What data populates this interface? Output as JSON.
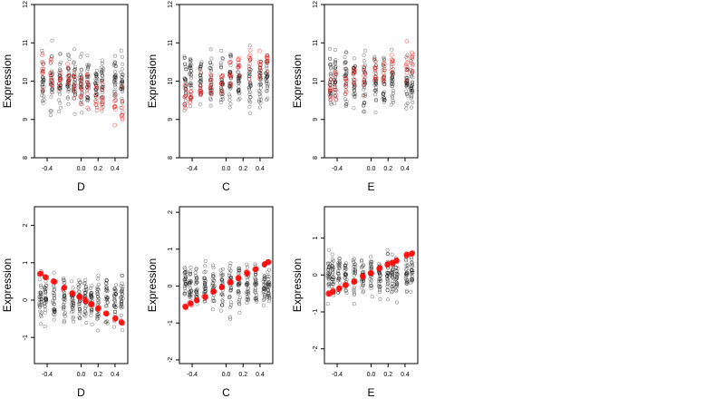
{
  "chart_data": [
    {
      "type": "scatter",
      "xlabel": "D",
      "ylabel": "Expression",
      "xlim": [
        -0.55,
        0.55
      ],
      "ylim": [
        8,
        12
      ],
      "xticks": [
        "-0.4",
        "0.0",
        "0.2",
        "0.4"
      ],
      "xtick_values": [
        -0.4,
        0.0,
        0.2,
        0.4
      ],
      "yticks": [
        "8",
        "9",
        "10",
        "11",
        "12"
      ],
      "ytick_values": [
        8,
        9,
        10,
        11,
        12
      ],
      "x_groups": [
        -0.45,
        -0.35,
        -0.25,
        -0.15,
        -0.08,
        0.0,
        0.08,
        0.18,
        0.25,
        0.4,
        0.48
      ],
      "observed_center": 10.0,
      "observed_spread": 0.85,
      "observed_per_group": 30,
      "fitted": {
        "style": "open",
        "start": 10.3,
        "end": 9.3,
        "spread": 0.55,
        "per_group": 8
      }
    },
    {
      "type": "scatter",
      "xlabel": "C",
      "ylabel": "Expression",
      "xlim": [
        -0.55,
        0.55
      ],
      "ylim": [
        8,
        12
      ],
      "xticks": [
        "-0.4",
        "0.0",
        "0.2",
        "0.4"
      ],
      "xtick_values": [
        -0.4,
        0.0,
        0.2,
        0.4
      ],
      "yticks": [
        "8",
        "9",
        "10",
        "11",
        "12"
      ],
      "ytick_values": [
        8,
        9,
        10,
        11,
        12
      ],
      "x_groups": [
        -0.48,
        -0.42,
        -0.3,
        -0.18,
        -0.05,
        0.05,
        0.15,
        0.28,
        0.4,
        0.48
      ],
      "observed_center": 10.0,
      "observed_spread": 0.85,
      "observed_per_group": 30,
      "fitted": {
        "style": "open",
        "start": 9.6,
        "end": 10.6,
        "spread": 0.45,
        "per_group": 8
      }
    },
    {
      "type": "scatter",
      "xlabel": "E",
      "ylabel": "Expression",
      "xlim": [
        -0.55,
        0.55
      ],
      "ylim": [
        8,
        12
      ],
      "xticks": [
        "-0.4",
        "0.0",
        "0.2",
        "0.4"
      ],
      "xtick_values": [
        -0.4,
        0.0,
        0.2,
        0.4
      ],
      "yticks": [
        "8",
        "9",
        "10",
        "11",
        "12"
      ],
      "ytick_values": [
        8,
        9,
        10,
        11,
        12
      ],
      "x_groups": [
        -0.48,
        -0.42,
        -0.3,
        -0.2,
        -0.08,
        0.05,
        0.15,
        0.25,
        0.42,
        0.48
      ],
      "observed_center": 10.0,
      "observed_spread": 0.85,
      "observed_per_group": 30,
      "fitted": {
        "style": "open",
        "start": 9.9,
        "end": 10.5,
        "spread": 0.5,
        "per_group": 8
      }
    },
    {
      "type": "scatter",
      "xlabel": "D",
      "ylabel": "Expression",
      "xlim": [
        -0.55,
        0.55
      ],
      "ylim": [
        -1.7,
        2.5
      ],
      "xticks": [
        "-0.4",
        "0.0",
        "0.2",
        "0.4"
      ],
      "xtick_values": [
        -0.4,
        0.0,
        0.2,
        0.4
      ],
      "yticks": [
        "-1",
        "0",
        "1",
        "2"
      ],
      "ytick_values": [
        -1,
        0,
        1,
        2
      ],
      "x_groups": [
        -0.48,
        -0.42,
        -0.32,
        -0.2,
        -0.1,
        -0.02,
        0.05,
        0.12,
        0.2,
        0.3,
        0.4,
        0.48
      ],
      "observed_center": 0.0,
      "observed_spread": 0.7,
      "observed_per_group": 28,
      "fitted": {
        "style": "filled",
        "start": 0.7,
        "end": -0.6,
        "spread": 0.04,
        "per_group": 5
      }
    },
    {
      "type": "scatter",
      "xlabel": "C",
      "ylabel": "Expression",
      "xlim": [
        -0.55,
        0.55
      ],
      "ylim": [
        -2.1,
        2.15
      ],
      "xticks": [
        "-0.4",
        "0.0",
        "0.2",
        "0.4"
      ],
      "xtick_values": [
        -0.4,
        0.0,
        0.2,
        0.4
      ],
      "yticks": [
        "-2",
        "-1",
        "0",
        "1",
        "2"
      ],
      "ytick_values": [
        -2,
        -1,
        0,
        1,
        2
      ],
      "x_groups": [
        -0.48,
        -0.42,
        -0.35,
        -0.25,
        -0.15,
        -0.05,
        0.05,
        0.15,
        0.25,
        0.35,
        0.45,
        0.5
      ],
      "observed_center": 0.0,
      "observed_spread": 0.7,
      "observed_per_group": 28,
      "fitted": {
        "style": "filled",
        "start": -0.55,
        "end": 0.65,
        "spread": 0.04,
        "per_group": 5
      }
    },
    {
      "type": "scatter",
      "xlabel": "E",
      "ylabel": "Expression",
      "xlim": [
        -0.55,
        0.55
      ],
      "ylim": [
        -2.4,
        1.85
      ],
      "xticks": [
        "-0.4",
        "0.0",
        "0.2",
        "0.4"
      ],
      "xtick_values": [
        -0.4,
        0.0,
        0.2,
        0.4
      ],
      "yticks": [
        "-2",
        "-1",
        "0",
        "1"
      ],
      "ytick_values": [
        -2,
        -1,
        0,
        1
      ],
      "x_groups": [
        -0.5,
        -0.45,
        -0.38,
        -0.3,
        -0.2,
        -0.1,
        0.0,
        0.1,
        0.2,
        0.25,
        0.3,
        0.42,
        0.48
      ],
      "observed_center": 0.0,
      "observed_spread": 0.65,
      "observed_per_group": 26,
      "fitted": {
        "style": "filled",
        "start": -0.5,
        "end": 0.6,
        "spread": 0.04,
        "per_group": 5
      }
    }
  ]
}
